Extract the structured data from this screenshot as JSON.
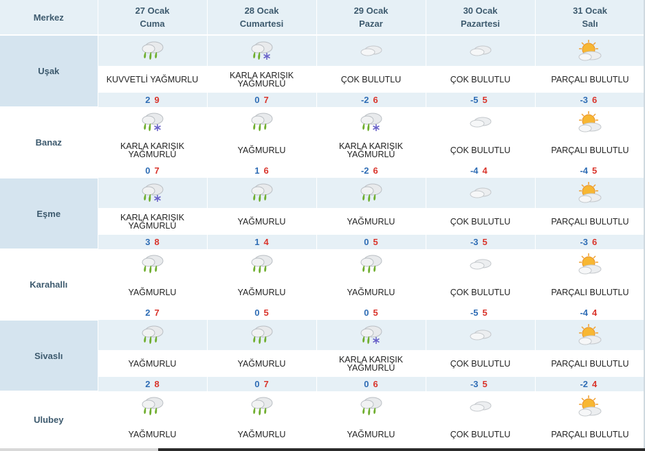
{
  "header": {
    "location_col": "Merkez",
    "days": [
      {
        "date": "27 Ocak",
        "weekday": "Cuma"
      },
      {
        "date": "28 Ocak",
        "weekday": "Cumartesi"
      },
      {
        "date": "29 Ocak",
        "weekday": "Pazar"
      },
      {
        "date": "30 Ocak",
        "weekday": "Pazartesi"
      },
      {
        "date": "31 Ocak",
        "weekday": "Salı"
      }
    ]
  },
  "rows": [
    {
      "name": "Uşak",
      "days": [
        {
          "icon": "rain-icon",
          "desc": "KUVVETLİ YAĞMURLU",
          "min": "2",
          "max": "9"
        },
        {
          "icon": "sleet-icon",
          "desc": "KARLA KARIŞIK YAĞMURLU",
          "min": "0",
          "max": "7"
        },
        {
          "icon": "cloudy-icon",
          "desc": "ÇOK BULUTLU",
          "min": "-2",
          "max": "6"
        },
        {
          "icon": "cloudy-icon",
          "desc": "ÇOK BULUTLU",
          "min": "-5",
          "max": "5"
        },
        {
          "icon": "partly-cloudy-icon",
          "desc": "PARÇALI BULUTLU",
          "min": "-3",
          "max": "6"
        }
      ]
    },
    {
      "name": "Banaz",
      "days": [
        {
          "icon": "sleet-icon",
          "desc": "KARLA KARIŞIK YAĞMURLU",
          "min": "0",
          "max": "7"
        },
        {
          "icon": "rain-icon",
          "desc": "YAĞMURLU",
          "min": "1",
          "max": "6"
        },
        {
          "icon": "sleet-icon",
          "desc": "KARLA KARIŞIK YAĞMURLU",
          "min": "-2",
          "max": "6"
        },
        {
          "icon": "cloudy-icon",
          "desc": "ÇOK BULUTLU",
          "min": "-4",
          "max": "4"
        },
        {
          "icon": "partly-cloudy-icon",
          "desc": "PARÇALI BULUTLU",
          "min": "-4",
          "max": "5"
        }
      ]
    },
    {
      "name": "Eşme",
      "days": [
        {
          "icon": "sleet-icon",
          "desc": "KARLA KARIŞIK YAĞMURLU",
          "min": "3",
          "max": "8"
        },
        {
          "icon": "rain-icon",
          "desc": "YAĞMURLU",
          "min": "1",
          "max": "4"
        },
        {
          "icon": "rain-icon",
          "desc": "YAĞMURLU",
          "min": "0",
          "max": "5"
        },
        {
          "icon": "cloudy-icon",
          "desc": "ÇOK BULUTLU",
          "min": "-3",
          "max": "5"
        },
        {
          "icon": "partly-cloudy-icon",
          "desc": "PARÇALI BULUTLU",
          "min": "-3",
          "max": "6"
        }
      ]
    },
    {
      "name": "Karahallı",
      "days": [
        {
          "icon": "rain-icon",
          "desc": "YAĞMURLU",
          "min": "2",
          "max": "7"
        },
        {
          "icon": "rain-icon",
          "desc": "YAĞMURLU",
          "min": "0",
          "max": "5"
        },
        {
          "icon": "rain-icon",
          "desc": "YAĞMURLU",
          "min": "0",
          "max": "5"
        },
        {
          "icon": "cloudy-icon",
          "desc": "ÇOK BULUTLU",
          "min": "-5",
          "max": "5"
        },
        {
          "icon": "partly-cloudy-icon",
          "desc": "PARÇALI BULUTLU",
          "min": "-4",
          "max": "4"
        }
      ]
    },
    {
      "name": "Sivaslı",
      "days": [
        {
          "icon": "rain-icon",
          "desc": "YAĞMURLU",
          "min": "2",
          "max": "8"
        },
        {
          "icon": "rain-icon",
          "desc": "YAĞMURLU",
          "min": "0",
          "max": "7"
        },
        {
          "icon": "sleet-icon",
          "desc": "KARLA KARIŞIK YAĞMURLU",
          "min": "0",
          "max": "6"
        },
        {
          "icon": "cloudy-icon",
          "desc": "ÇOK BULUTLU",
          "min": "-3",
          "max": "5"
        },
        {
          "icon": "partly-cloudy-icon",
          "desc": "PARÇALI BULUTLU",
          "min": "-2",
          "max": "4"
        }
      ]
    },
    {
      "name": "Ulubey",
      "days": [
        {
          "icon": "rain-icon",
          "desc": "YAĞMURLU"
        },
        {
          "icon": "rain-icon",
          "desc": "YAĞMURLU"
        },
        {
          "icon": "rain-icon",
          "desc": "YAĞMURLU"
        },
        {
          "icon": "cloudy-icon",
          "desc": "ÇOK BULUTLU"
        },
        {
          "icon": "partly-cloudy-icon",
          "desc": "PARÇALI BULUTLU"
        }
      ]
    }
  ],
  "colors": {
    "header_bg": "#e6f0f6",
    "location_bg": "#d5e4ef",
    "min_temp": "#2f6db5",
    "max_temp": "#d9342b"
  }
}
